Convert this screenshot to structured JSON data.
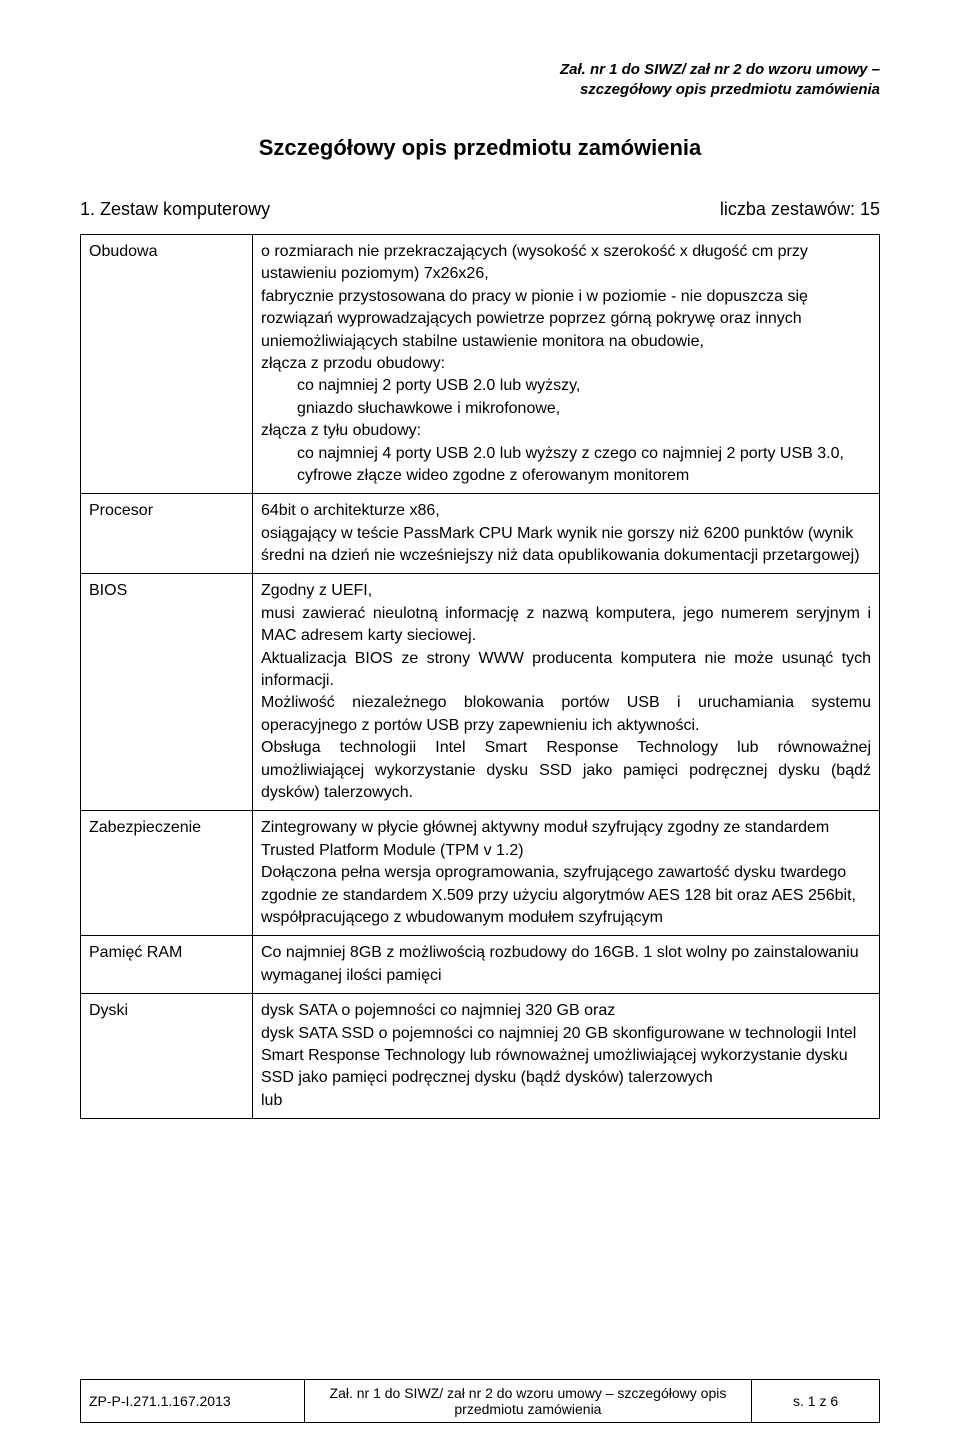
{
  "header": {
    "line1": "Zał. nr 1 do SIWZ/ zał nr 2 do wzoru umowy –",
    "line2": "szczegółowy opis przedmiotu zamówienia"
  },
  "title": "Szczegółowy opis przedmiotu zamówienia",
  "section": {
    "left": "1. Zestaw komputerowy",
    "right": "liczba zestawów: 15"
  },
  "rows": {
    "obudowa": {
      "label": "Obudowa",
      "p1": "o rozmiarach nie przekraczających (wysokość x szerokość x długość cm przy ustawieniu poziomym) 7x26x26,",
      "p2": "fabrycznie przystosowana do pracy w pionie i w poziomie - nie dopuszcza się rozwiązań wyprowadzających powietrze poprzez górną pokrywę oraz innych uniemożliwiających stabilne ustawienie monitora na obudowie,",
      "p3": "złącza z przodu obudowy:",
      "p3a": "co najmniej 2 porty USB 2.0 lub wyższy,",
      "p3b": "gniazdo słuchawkowe i mikrofonowe,",
      "p4": "złącza z tyłu obudowy:",
      "p4a": "co najmniej 4 porty USB 2.0 lub wyższy z czego co najmniej 2 porty USB 3.0,",
      "p4b": "cyfrowe złącze wideo zgodne z oferowanym monitorem"
    },
    "procesor": {
      "label": "Procesor",
      "p1": "64bit o architekturze x86,",
      "p2": "osiągający w teście PassMark CPU Mark wynik nie gorszy niż 6200 punktów (wynik średni na dzień nie wcześniejszy niż data opublikowania dokumentacji przetargowej)"
    },
    "bios": {
      "label": "BIOS",
      "p1": "Zgodny z UEFI,",
      "p2": "musi zawierać nieulotną informację z nazwą komputera, jego numerem seryjnym i MAC adresem karty sieciowej.",
      "p3": "Aktualizacja BIOS ze strony WWW producenta komputera nie może usunąć tych informacji.",
      "p4": "Możliwość niezależnego blokowania portów USB i uruchamiania systemu operacyjnego z portów USB przy zapewnieniu ich aktywności.",
      "p5": "Obsługa technologii Intel Smart Response Technology lub równoważnej umożliwiającej wykorzystanie dysku SSD jako pamięci podręcznej dysku (bądź dysków) talerzowych."
    },
    "zabezpieczenie": {
      "label": "Zabezpieczenie",
      "p1": "Zintegrowany w płycie głównej aktywny moduł szyfrujący zgodny ze standardem Trusted Platform Module (TPM v 1.2)",
      "p2": "Dołączona pełna wersja oprogramowania, szyfrującego zawartość dysku twardego zgodnie ze standardem X.509 przy użyciu algorytmów AES 128 bit oraz AES 256bit, współpracującego z wbudowanym modułem szyfrującym"
    },
    "ram": {
      "label": "Pamięć RAM",
      "p1": "Co najmniej 8GB z możliwością rozbudowy do 16GB. 1 slot wolny po zainstalowaniu wymaganej ilości pamięci"
    },
    "dyski": {
      "label": "Dyski",
      "p1": "dysk SATA o pojemności co najmniej 320 GB oraz",
      "p2": "dysk SATA SSD o pojemności co najmniej 20 GB skonfigurowane w technologii Intel Smart Response Technology lub równoważnej umożliwiającej wykorzystanie dysku SSD jako pamięci podręcznej dysku (bądź dysków) talerzowych",
      "p3": "lub"
    }
  },
  "footer": {
    "left": "ZP-P-I.271.1.167.2013",
    "mid": "Zał. nr 1 do SIWZ/ zał nr 2 do wzoru umowy – szczegółowy opis przedmiotu zamówienia",
    "right": "s. 1 z 6"
  }
}
